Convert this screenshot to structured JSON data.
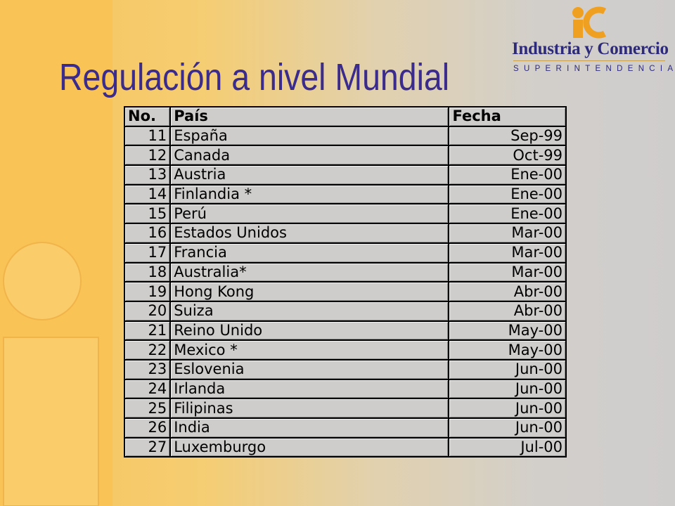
{
  "slide": {
    "title": "Regulación a nivel Mundial"
  },
  "logo": {
    "name": "Industria y Comercio",
    "subtitle": "SUPERINTENDENCIA"
  },
  "table": {
    "headers": [
      "No.",
      "País",
      "Fecha"
    ],
    "rows": [
      {
        "no": "11",
        "country": "España",
        "date": "Sep-99"
      },
      {
        "no": "12",
        "country": "Canada",
        "date": "Oct-99"
      },
      {
        "no": "13",
        "country": "Austria",
        "date": "Ene-00"
      },
      {
        "no": "14",
        "country": "Finlandia *",
        "date": "Ene-00"
      },
      {
        "no": "15",
        "country": "Perú",
        "date": "Ene-00"
      },
      {
        "no": "16",
        "country": "Estados Unidos",
        "date": "Mar-00"
      },
      {
        "no": "17",
        "country": "Francia",
        "date": "Mar-00"
      },
      {
        "no": "18",
        "country": "Australia*",
        "date": "Mar-00"
      },
      {
        "no": "19",
        "country": "Hong Kong",
        "date": "Abr-00"
      },
      {
        "no": "20",
        "country": "Suiza",
        "date": "Abr-00"
      },
      {
        "no": "21",
        "country": "Reino Unido",
        "date": "May-00"
      },
      {
        "no": "22",
        "country": "Mexico *",
        "date": "May-00"
      },
      {
        "no": "23",
        "country": "Eslovenia",
        "date": "Jun-00"
      },
      {
        "no": "24",
        "country": "Irlanda",
        "date": "Jun-00"
      },
      {
        "no": "25",
        "country": "Filipinas",
        "date": "Jun-00"
      },
      {
        "no": "26",
        "country": "India",
        "date": "Jun-00"
      },
      {
        "no": "27",
        "country": "Luxemburgo",
        "date": "Jul-00"
      }
    ]
  },
  "colors": {
    "title": "#3b2b8a",
    "background_left": "#f8c45a",
    "background_right": "#cfcdcc",
    "logo_orange": "#f0a020",
    "logo_blue": "#2e2a7a"
  }
}
